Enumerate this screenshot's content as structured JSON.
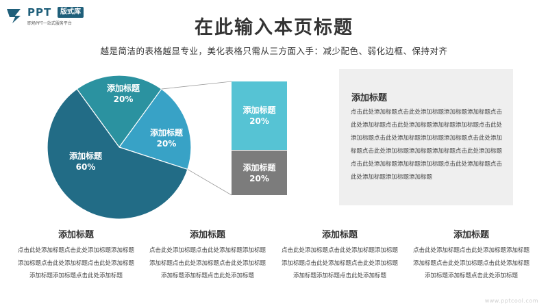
{
  "logo": {
    "brand": "PPT",
    "badge": "版式库",
    "tagline": "职场PPT一站式服务平台"
  },
  "header": {
    "title": "在此输入本页标题",
    "subtitle": "越是简洁的表格越显专业，美化表格只需从三方面入手：减少配色、弱化边框、保持对齐"
  },
  "chart_data": {
    "type": "pie",
    "slices": [
      {
        "label": "添加标题",
        "value": 20,
        "display": "20%",
        "color": "#2b92a0"
      },
      {
        "label": "添加标题",
        "value": 20,
        "display": "20%",
        "color": "#38a2c6"
      },
      {
        "label": "添加标题",
        "value": 60,
        "display": "60%",
        "color": "#226c86"
      }
    ],
    "breakdown": [
      {
        "label": "添加标题",
        "display": "20%",
        "color": "#56c3d4"
      },
      {
        "label": "添加标题",
        "display": "20%",
        "color": "#7c7c7c"
      }
    ]
  },
  "panel": {
    "title": "添加标题",
    "text": "点击此处添加标题点击此处添加标题添加标题添加标题点击此处添加标题点击此处添加标题添加标题添加标题点击此处添加标题点击此处添加标题添加标题添加标题点击此处添加标题点击此处添加标题添加标题添加标题点击此处添加标题点击此处添加标题添加标题添加标题点击此处添加标题点击此处添加标题添加标题添加标题"
  },
  "columns": [
    {
      "title": "添加标题",
      "text": "点击此处添加标题点击此处添加标题添加标题添加标题点击此处添加标题点击此处添加标题添加标题添加标题点击此处添加标题"
    },
    {
      "title": "添加标题",
      "text": "点击此处添加标题点击此处添加标题添加标题添加标题点击此处添加标题点击此处添加标题添加标题添加标题点击此处添加标题"
    },
    {
      "title": "添加标题",
      "text": "点击此处添加标题点击此处添加标题添加标题添加标题点击此处添加标题点击此处添加标题添加标题添加标题点击此处添加标题"
    },
    {
      "title": "添加标题",
      "text": "点击此处添加标题点击此处添加标题添加标题添加标题点击此处添加标题点击此处添加标题添加标题添加标题点击此处添加标题"
    }
  ],
  "watermark": "www.pptcool.com"
}
